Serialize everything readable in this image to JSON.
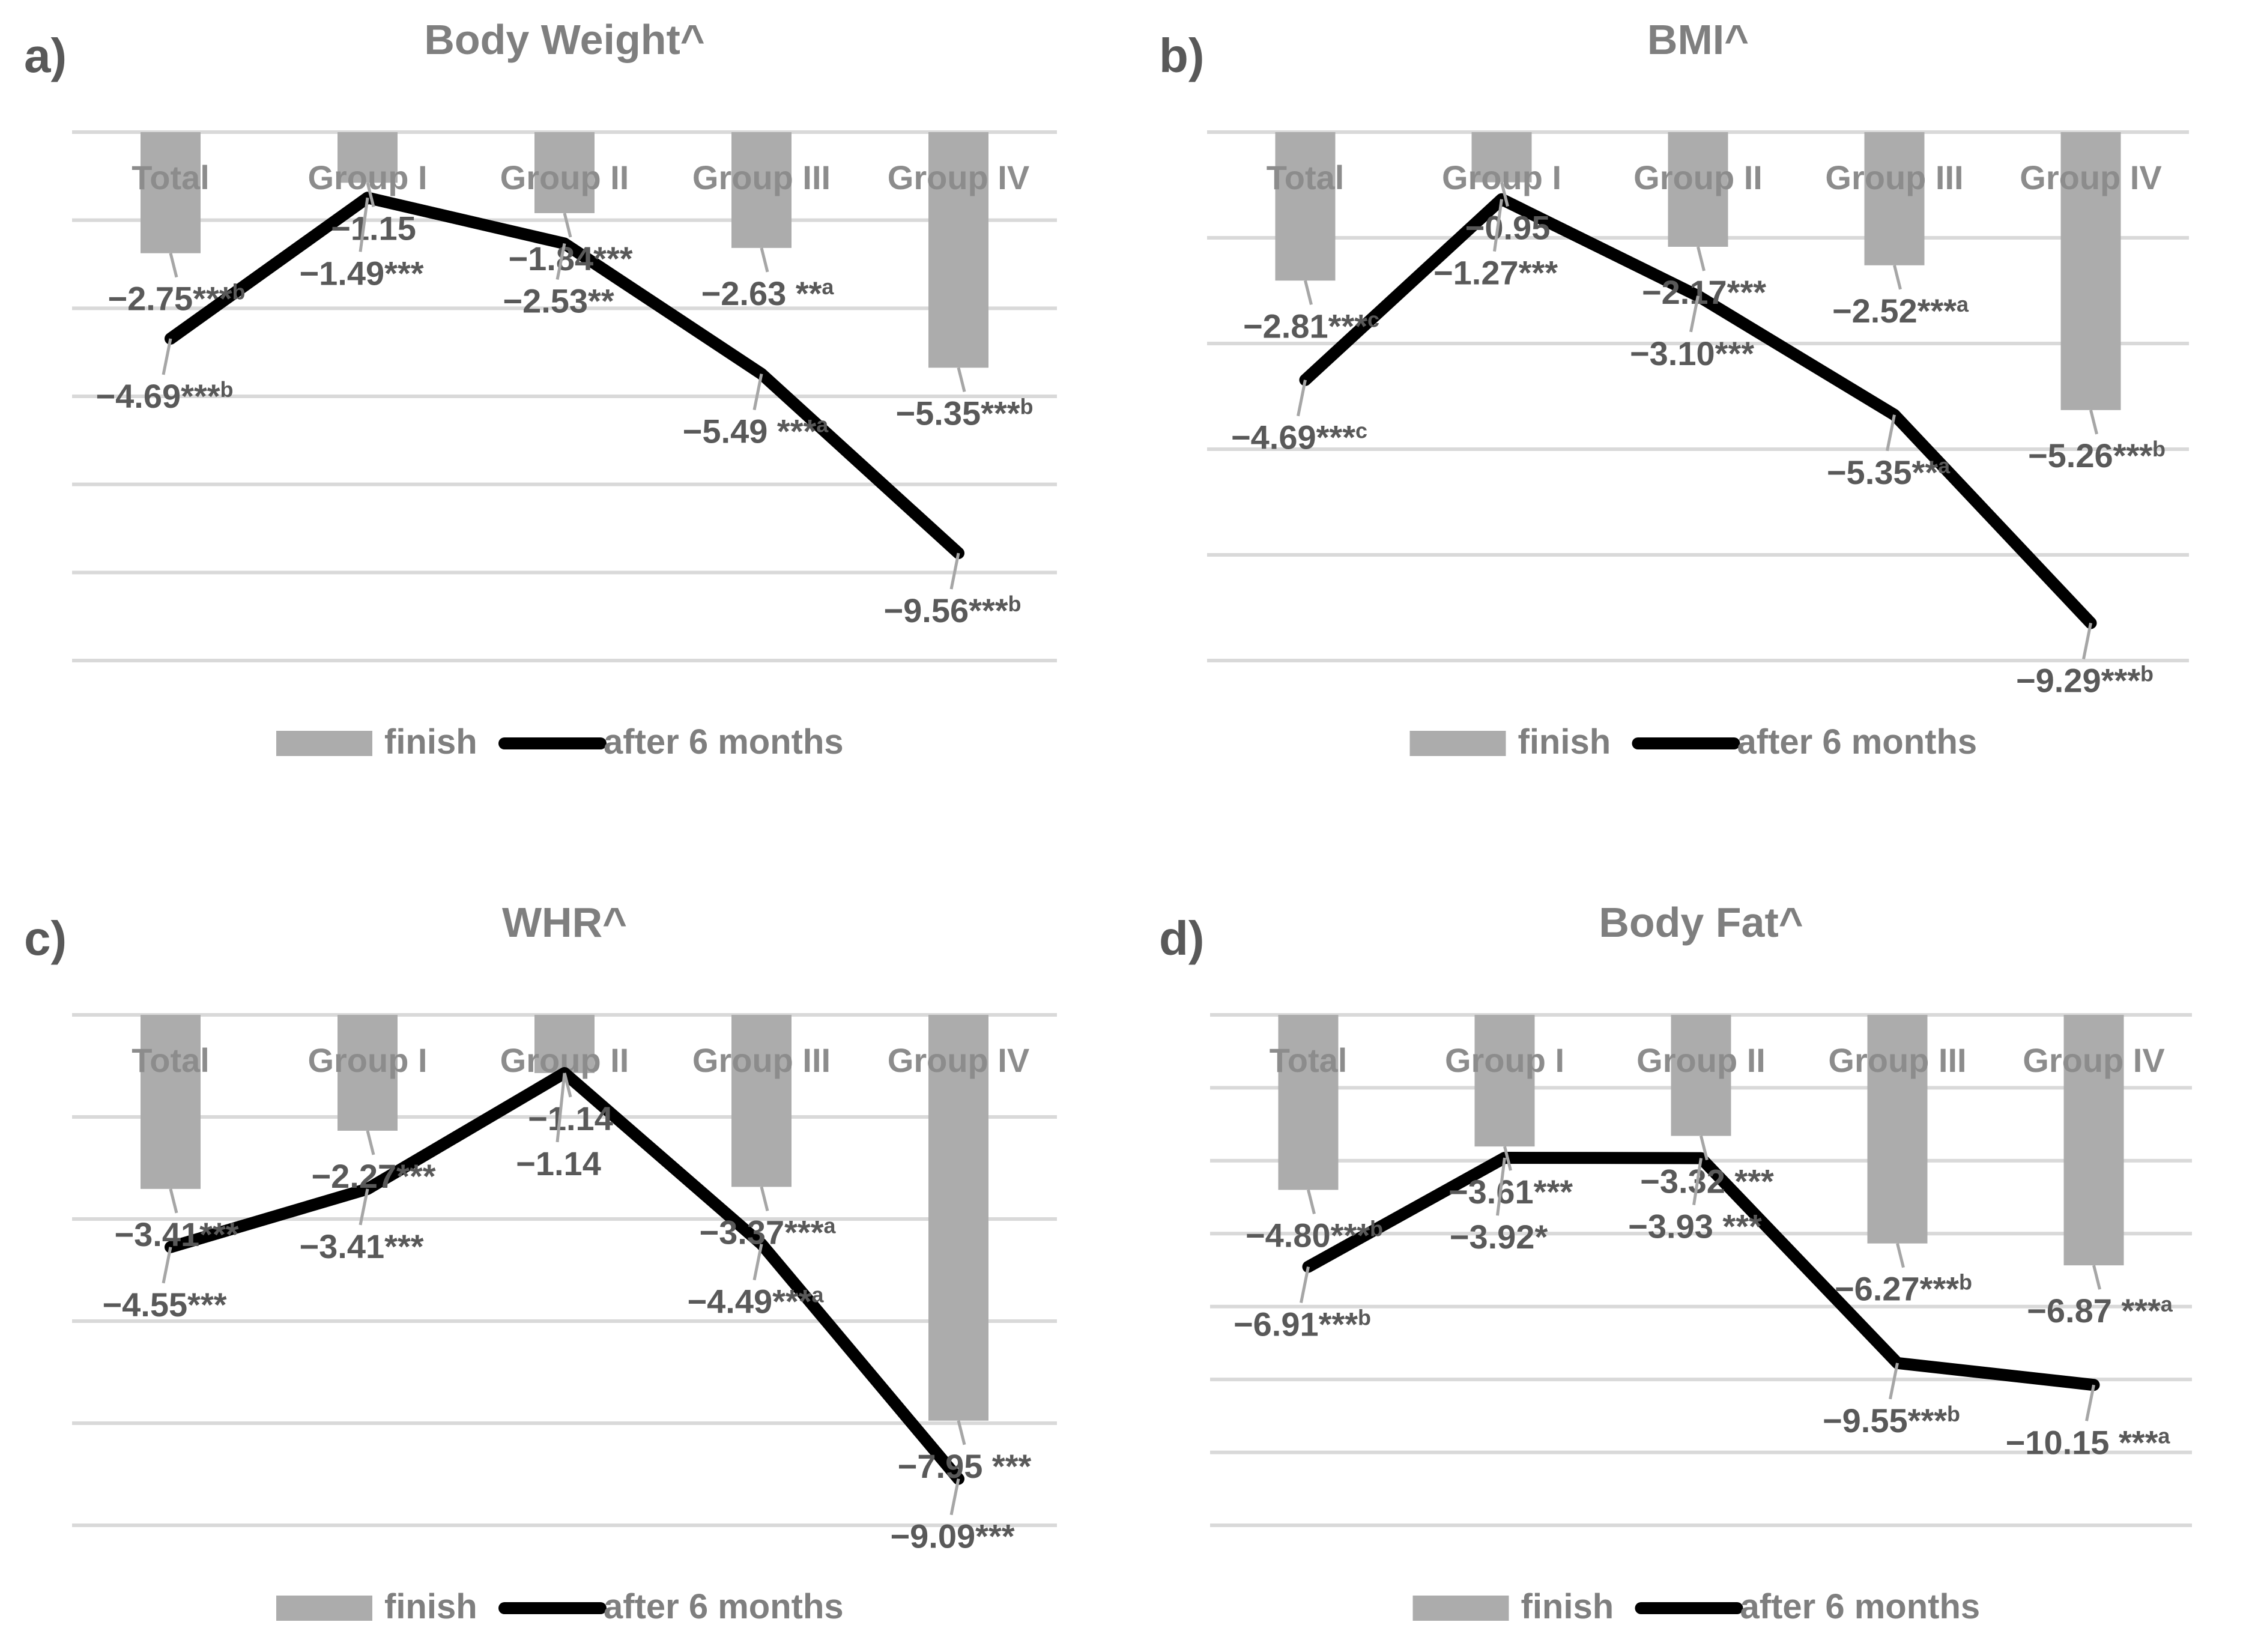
{
  "legend": {
    "bar_label": "finish",
    "line_label": "after 6 months"
  },
  "chart_data": [
    {
      "panel": "a)",
      "type": "bar+line",
      "title": "Body Weight^",
      "categories": [
        "Total",
        "Group I",
        "Group II",
        "Group III",
        "Group IV"
      ],
      "series": [
        {
          "name": "finish",
          "kind": "bar",
          "values": [
            -2.75,
            -1.15,
            -1.84,
            -2.63,
            -5.35
          ],
          "labels": [
            "−2.75***b",
            "−1.15",
            "−1.84***",
            "−2.63 **a",
            "−5.35***b"
          ]
        },
        {
          "name": "after 6 months",
          "kind": "line",
          "values": [
            -4.69,
            -1.49,
            -2.53,
            -5.49,
            -9.56
          ],
          "labels": [
            "−4.69***b",
            "−1.49***",
            "−2.53**",
            "−5.49 ***a",
            "−9.56***b"
          ]
        }
      ],
      "ylim": [
        -12,
        0
      ],
      "grid": true,
      "legend": "bottom"
    },
    {
      "panel": "b)",
      "type": "bar+line",
      "title": "BMI^",
      "categories": [
        "Total",
        "Group I",
        "Group II",
        "Group III",
        "Group IV"
      ],
      "series": [
        {
          "name": "finish",
          "kind": "bar",
          "values": [
            -2.81,
            -0.95,
            -2.17,
            -2.52,
            -5.26
          ],
          "labels": [
            "−2.81***c",
            "−0.95",
            "−2.17***",
            "−2.52***a",
            "−5.26***b"
          ]
        },
        {
          "name": "after 6 months",
          "kind": "line",
          "values": [
            -4.69,
            -1.27,
            -3.1,
            -5.35,
            -9.29
          ],
          "labels": [
            "−4.69***c",
            "−1.27***",
            "−3.10***",
            "−5.35**a",
            "−9.29***b"
          ]
        }
      ],
      "ylim": [
        -10,
        0
      ],
      "grid": true,
      "legend": "bottom"
    },
    {
      "panel": "c)",
      "type": "bar+line",
      "title": "WHR^",
      "categories": [
        "Total",
        "Group I",
        "Group II",
        "Group III",
        "Group IV"
      ],
      "series": [
        {
          "name": "finish",
          "kind": "bar",
          "values": [
            -3.41,
            -2.27,
            -1.14,
            -3.37,
            -7.95
          ],
          "labels": [
            "−3.41***",
            "−2.27***",
            "−1.14",
            "−3.37***a",
            "−7.95 ***"
          ]
        },
        {
          "name": "after 6 months",
          "kind": "line",
          "values": [
            -4.55,
            -3.41,
            -1.14,
            -4.49,
            -9.09
          ],
          "labels": [
            "−4.55***",
            "−3.41***",
            "−1.14",
            "−4.49***a",
            "−9.09***"
          ]
        }
      ],
      "ylim": [
        -10,
        0
      ],
      "grid": true,
      "legend": "bottom"
    },
    {
      "panel": "d)",
      "type": "bar+line",
      "title": "Body Fat^",
      "categories": [
        "Total",
        "Group I",
        "Group II",
        "Group III",
        "Group IV"
      ],
      "series": [
        {
          "name": "finish",
          "kind": "bar",
          "values": [
            -4.8,
            -3.61,
            -3.32,
            -6.27,
            -6.87
          ],
          "labels": [
            "−4.80***b",
            "−3.61***",
            "−3.32 ***",
            "−6.27***b",
            "−6.87 ***a"
          ]
        },
        {
          "name": "after 6 months",
          "kind": "line",
          "values": [
            -6.91,
            -3.92,
            -3.93,
            -9.55,
            -10.15
          ],
          "labels": [
            "−6.91***b",
            "−3.92*",
            "−3.93 ***",
            "−9.55***b",
            "−10.15 ***a"
          ]
        }
      ],
      "ylim": [
        -14,
        0
      ],
      "grid": true,
      "legend": "bottom"
    }
  ]
}
